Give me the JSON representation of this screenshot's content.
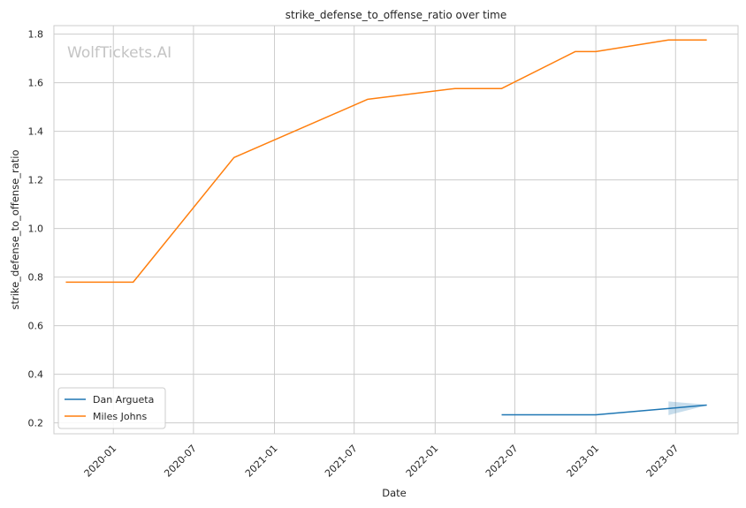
{
  "chart_data": {
    "type": "line",
    "title": "strike_defense_to_offense_ratio over time",
    "xlabel": "Date",
    "ylabel": "strike_defense_to_offense_ratio",
    "watermark": "WolfTickets.AI",
    "x_ticks": [
      "2020-01",
      "2020-07",
      "2021-01",
      "2021-07",
      "2022-01",
      "2022-07",
      "2023-01",
      "2023-07"
    ],
    "y_ticks": [
      0.2,
      0.4,
      0.6,
      0.8,
      1.0,
      1.2,
      1.4,
      1.6,
      1.8
    ],
    "xlim": [
      "2019-08-19",
      "2023-11-20"
    ],
    "ylim": [
      0.155,
      1.835
    ],
    "grid": true,
    "legend_position": "lower-left",
    "series": [
      {
        "name": "Dan Argueta",
        "color": "#1f77b4",
        "x": [
          "2022-06-01",
          "2023-01-01",
          "2023-06-15",
          "2023-09-10"
        ],
        "y": [
          0.233,
          0.233,
          0.259,
          0.273
        ],
        "band": {
          "x": [
            "2023-06-15",
            "2023-09-10"
          ],
          "lower": [
            0.232,
            0.272
          ],
          "upper": [
            0.288,
            0.275
          ]
        }
      },
      {
        "name": "Miles Johns",
        "color": "#ff7f0e",
        "x": [
          "2019-09-15",
          "2020-02-15",
          "2020-10-01",
          "2021-08-01",
          "2022-02-15",
          "2022-06-01",
          "2022-11-15",
          "2023-01-01",
          "2023-06-15",
          "2023-09-10"
        ],
        "y": [
          0.779,
          0.779,
          1.292,
          1.532,
          1.576,
          1.576,
          1.728,
          1.728,
          1.776,
          1.776
        ]
      }
    ]
  }
}
